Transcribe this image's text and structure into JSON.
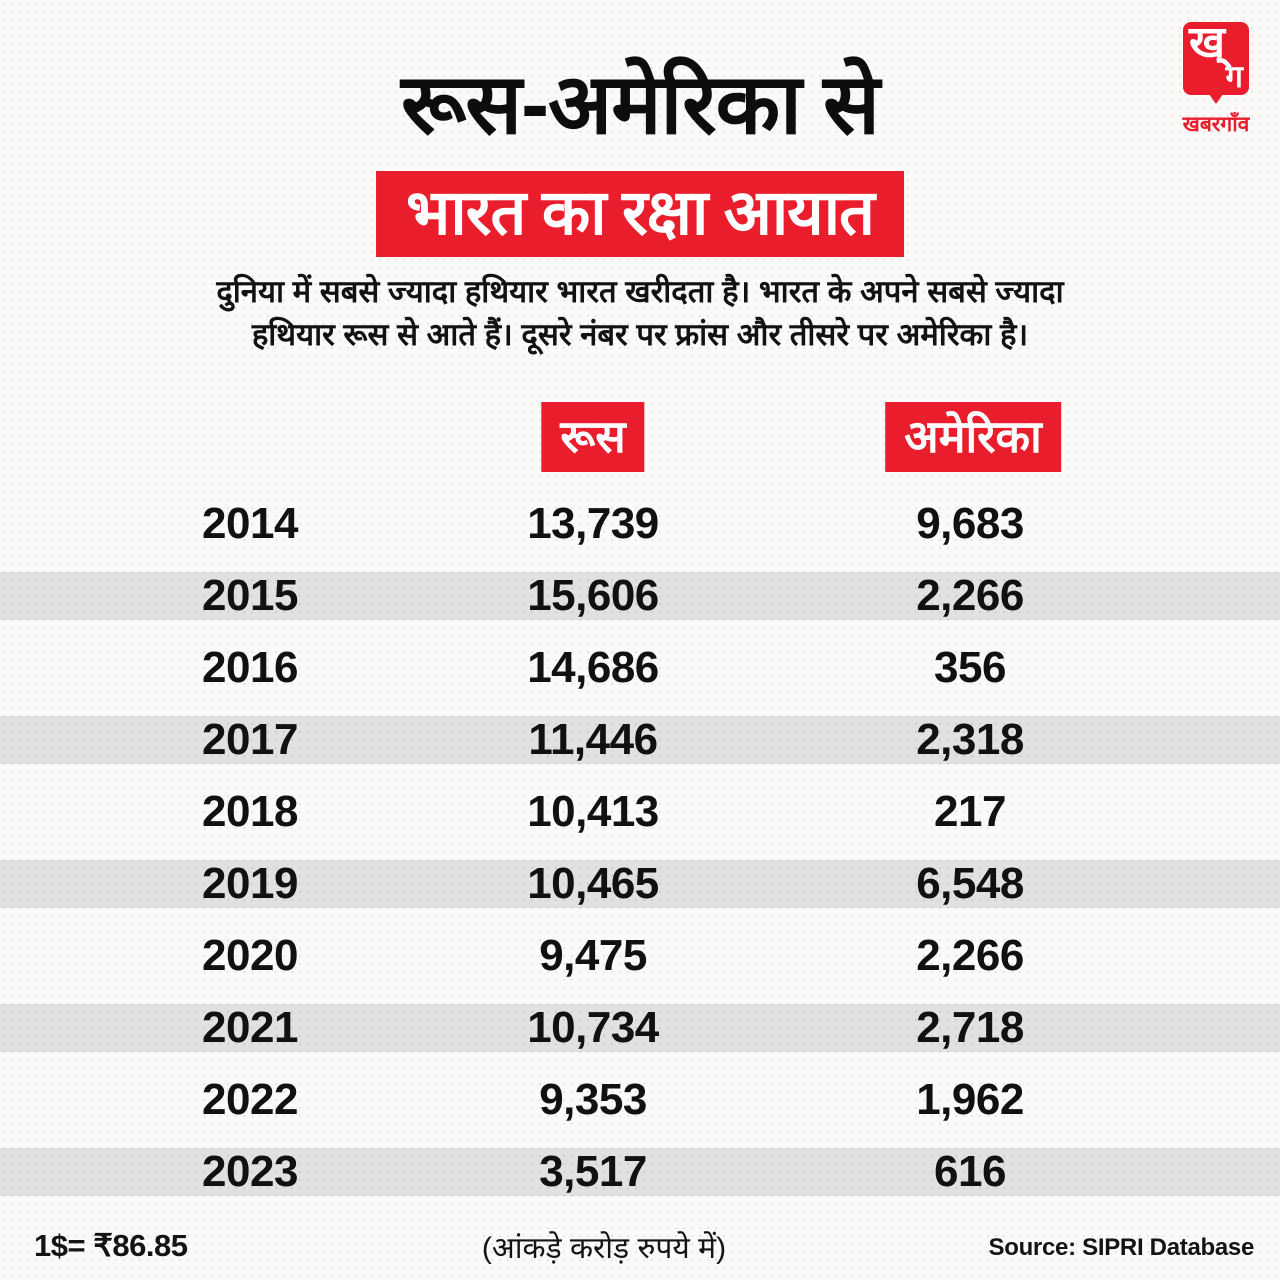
{
  "colors": {
    "accent_red": "#e91d2b",
    "stripe_gray": "#e3e3e3",
    "text_black": "#141414",
    "background": "#fbfaf8"
  },
  "brand": {
    "logo_char_top": "ख्",
    "logo_char_bottom": "ग",
    "wordmark": "खबरगाँव"
  },
  "header": {
    "title_line1": "रूस-अमेरिका से",
    "title_line2": "भारत का रक्षा आयात",
    "subtitle_line1": "दुनिया में सबसे ज्यादा हथियार भारत खरीदता है। भारत के अपने सबसे ज्यादा",
    "subtitle_line2": "हथियार रूस से आते हैं। दूसरे नंबर पर फ्रांस और तीसरे पर अमेरिका है।"
  },
  "table": {
    "columns": [
      "रूस",
      "अमेरिका"
    ],
    "rows": [
      {
        "year": "2014",
        "russia": "13,739",
        "america": "9,683"
      },
      {
        "year": "2015",
        "russia": "15,606",
        "america": "2,266"
      },
      {
        "year": "2016",
        "russia": "14,686",
        "america": "356"
      },
      {
        "year": "2017",
        "russia": "11,446",
        "america": "2,318"
      },
      {
        "year": "2018",
        "russia": "10,413",
        "america": "217"
      },
      {
        "year": "2019",
        "russia": "10,465",
        "america": "6,548"
      },
      {
        "year": "2020",
        "russia": "9,475",
        "america": "2,266"
      },
      {
        "year": "2021",
        "russia": "10,734",
        "america": "2,718"
      },
      {
        "year": "2022",
        "russia": "9,353",
        "america": "1,962"
      },
      {
        "year": "2023",
        "russia": "3,517",
        "america": "616"
      }
    ]
  },
  "footer": {
    "exchange_rate": "1$= ₹86.85",
    "unit_note": "(आंकड़े करोड़ रुपये में)",
    "source": "Source: SIPRI Database"
  },
  "chart_data": {
    "type": "table",
    "title": "रूस-अमेरिका से भारत का रक्षा आयात",
    "subtitle": "दुनिया में सबसे ज्यादा हथियार भारत खरीदता है। भारत के अपने सबसे ज्यादा हथियार रूस से आते हैं। दूसरे नंबर पर फ्रांस और तीसरे पर अमेरिका है।",
    "categories": [
      "2014",
      "2015",
      "2016",
      "2017",
      "2018",
      "2019",
      "2020",
      "2021",
      "2022",
      "2023"
    ],
    "series": [
      {
        "name": "रूस",
        "values": [
          13739,
          15606,
          14686,
          11446,
          10413,
          10465,
          9475,
          10734,
          9353,
          3517
        ]
      },
      {
        "name": "अमेरिका",
        "values": [
          9683,
          2266,
          356,
          2318,
          217,
          6548,
          2266,
          2718,
          1962,
          616
        ]
      }
    ],
    "unit_note": "(आंकड़े करोड़ रुपये में)",
    "exchange_rate_note": "1$= ₹86.85",
    "source": "Source: SIPRI Database",
    "layout": "alternating gray row stripes, values bold black, headers white on red"
  }
}
